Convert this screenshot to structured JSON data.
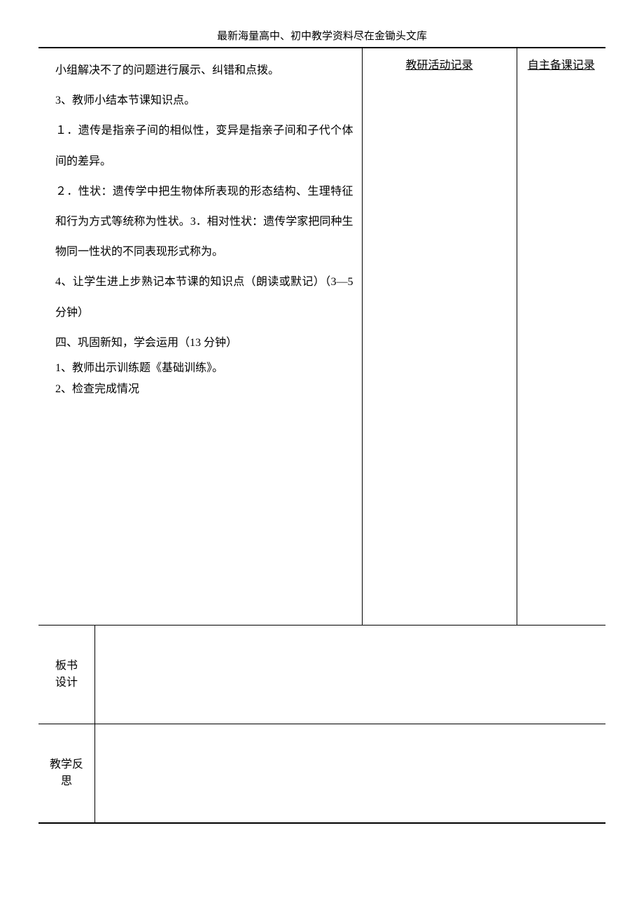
{
  "header": "最新海量高中、初中教学资料尽在金锄头文库",
  "col2_header": "教研活动记录",
  "col3_header": "自主备课记录",
  "content": {
    "p1": "小组解决不了的问题进行展示、纠错和点拨。",
    "p2": "3、教师小结本节课知识点。",
    "p3": "１．遗传是指亲子间的相似性，变异是指亲子间和子代个体间的差异。",
    "p4": "２．性状：遗传学中把生物体所表现的形态结构、生理特征和行为方式等统称为性状。3．相对性状：遗传学家把同种生物同一性状的不同表现形式称为。",
    "p5": "4、让学生进上步熟记本节课的知识点（朗读或默记）（3—5 分钟）",
    "p6": "四、巩固新知，学会运用（13 分钟）",
    "p7": "1、教师出示训练题《基础训练》。",
    "p8": "2、检查完成情况"
  },
  "row2_label": "板书\n设计",
  "row3_label": "教学反\n思"
}
